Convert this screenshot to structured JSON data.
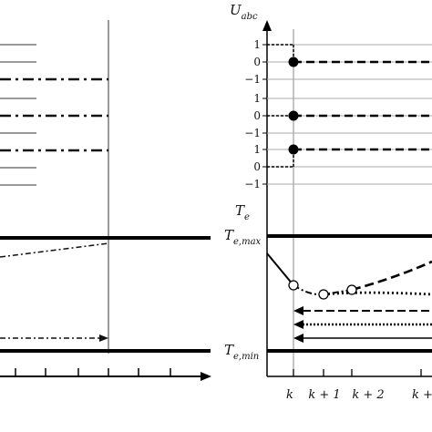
{
  "labels": {
    "u_abc_main": "U",
    "u_abc_sub": "abc",
    "te_main": "T",
    "te_sub": "e",
    "te_max_main": "T",
    "te_max_sub": "e,max",
    "te_min_main": "T",
    "te_min_sub": "e,min"
  },
  "phase_ticks": [
    [
      "1",
      "0",
      "−1"
    ],
    [
      "1",
      "0",
      "−1"
    ],
    [
      "1",
      "0",
      "−1"
    ]
  ],
  "x_ticks": [
    "k",
    "k + 1",
    "k + 2",
    "k +"
  ]
}
